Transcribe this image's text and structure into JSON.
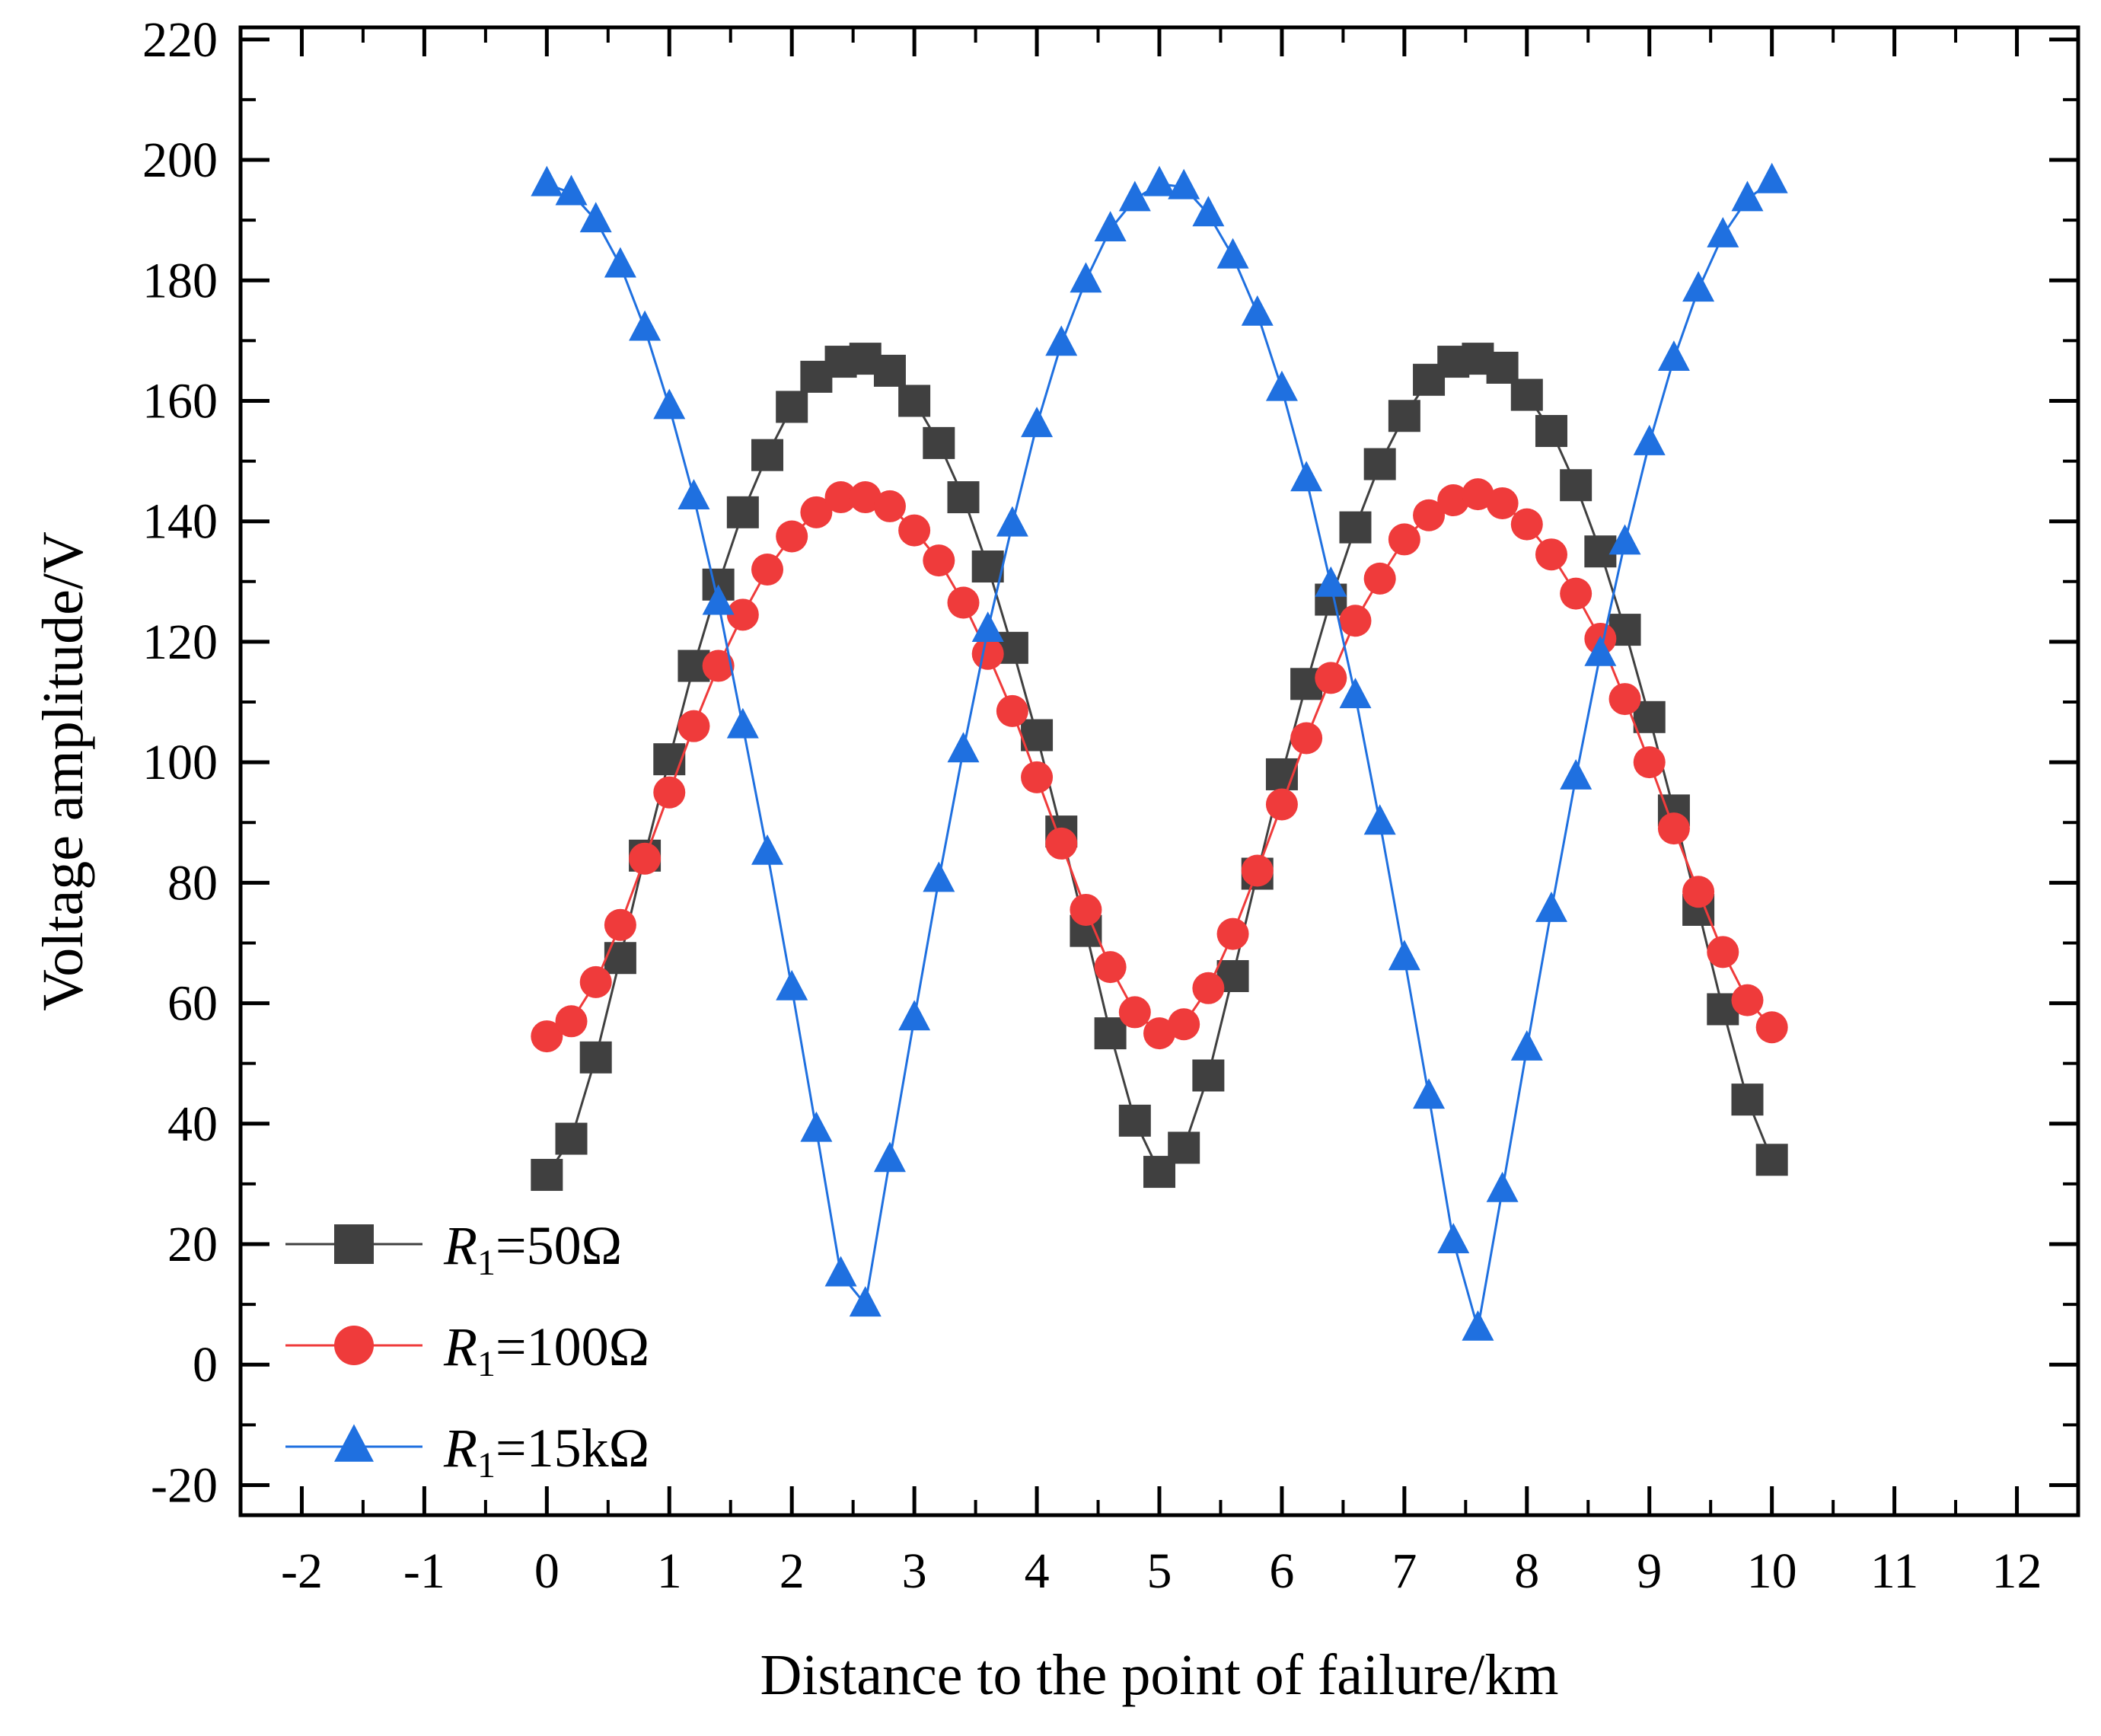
{
  "chart_data": {
    "type": "line",
    "title": "",
    "xlabel": "Distance to the point of failure/km",
    "ylabel": "Voltage amplitude/V",
    "xlim": [
      -2.5,
      12.5
    ],
    "ylim": [
      -25,
      222
    ],
    "xticks": [
      "-2",
      "-1",
      "0",
      "1",
      "2",
      "3",
      "4",
      "5",
      "6",
      "7",
      "8",
      "9",
      "10",
      "11",
      "12"
    ],
    "yticks": [
      "-20",
      "0",
      "20",
      "40",
      "60",
      "80",
      "100",
      "120",
      "140",
      "160",
      "180",
      "200",
      "220"
    ],
    "legend_position": "bottom-left",
    "x": [
      0,
      0.2,
      0.4,
      0.6,
      0.8,
      1.0,
      1.2,
      1.4,
      1.6,
      1.8,
      2.0,
      2.2,
      2.4,
      2.6,
      2.8,
      3.0,
      3.2,
      3.4,
      3.6,
      3.8,
      4.0,
      4.2,
      4.4,
      4.6,
      4.8,
      5.0,
      5.2,
      5.4,
      5.6,
      5.8,
      6.0,
      6.2,
      6.4,
      6.6,
      6.8,
      7.0,
      7.2,
      7.4,
      7.6,
      7.8,
      8.0,
      8.2,
      8.4,
      8.6,
      8.8,
      9.0,
      9.2,
      9.4,
      9.6,
      9.8,
      10.0
    ],
    "series": [
      {
        "name": "R1=50Ω",
        "label_main": "R",
        "label_sub": "1",
        "label_rest": "=50Ω",
        "color": "#404040",
        "marker": "square",
        "values": [
          31.5,
          37.5,
          51,
          67.5,
          84.5,
          100.5,
          116,
          129.5,
          141.5,
          151,
          159,
          164,
          166.5,
          167,
          165,
          160,
          153,
          144,
          132.5,
          119,
          104.5,
          88.5,
          72,
          55,
          40.5,
          32,
          36,
          48,
          64.5,
          81.5,
          98,
          113,
          127,
          139,
          149.5,
          157.5,
          163.5,
          166.5,
          167,
          165.5,
          161,
          155,
          146,
          135,
          122,
          107.5,
          92,
          75.5,
          59,
          44,
          34
        ]
      },
      {
        "name": "R1=100Ω",
        "label_main": "R",
        "label_sub": "1",
        "label_rest": "=100Ω",
        "color": "#ef3b3b",
        "marker": "circle",
        "values": [
          54.5,
          57,
          63.5,
          73,
          84,
          95,
          106,
          116,
          124.5,
          132,
          137.5,
          141.5,
          144,
          144,
          142.5,
          138.5,
          133.5,
          126.5,
          118,
          108.5,
          97.5,
          86.5,
          75.5,
          66,
          58.5,
          55,
          56.5,
          62.5,
          71.5,
          82,
          93,
          104,
          114,
          123.5,
          130.5,
          137,
          141,
          143.5,
          144.5,
          143,
          139.5,
          134.5,
          128,
          120.5,
          110.5,
          100,
          89,
          78.5,
          68.5,
          60.5,
          56
        ]
      },
      {
        "name": "R1=15kΩ",
        "label_main": "R",
        "label_sub": "1",
        "label_rest": "=15kΩ",
        "color": "#1f70e0",
        "marker": "triangle",
        "values": [
          196,
          194.5,
          190,
          182.5,
          172,
          159,
          144,
          126.5,
          106,
          85,
          62.5,
          39,
          15,
          10,
          34,
          57.5,
          80.5,
          102,
          122,
          139.5,
          156,
          169.5,
          180,
          188.5,
          193.5,
          196,
          195.5,
          191,
          184,
          174.5,
          162,
          147,
          129.5,
          111,
          90,
          67.5,
          44.5,
          20.5,
          6,
          29,
          52.5,
          75.5,
          97.5,
          118,
          136.5,
          153,
          167,
          178.5,
          187.5,
          193.5,
          196.5
        ]
      }
    ]
  }
}
